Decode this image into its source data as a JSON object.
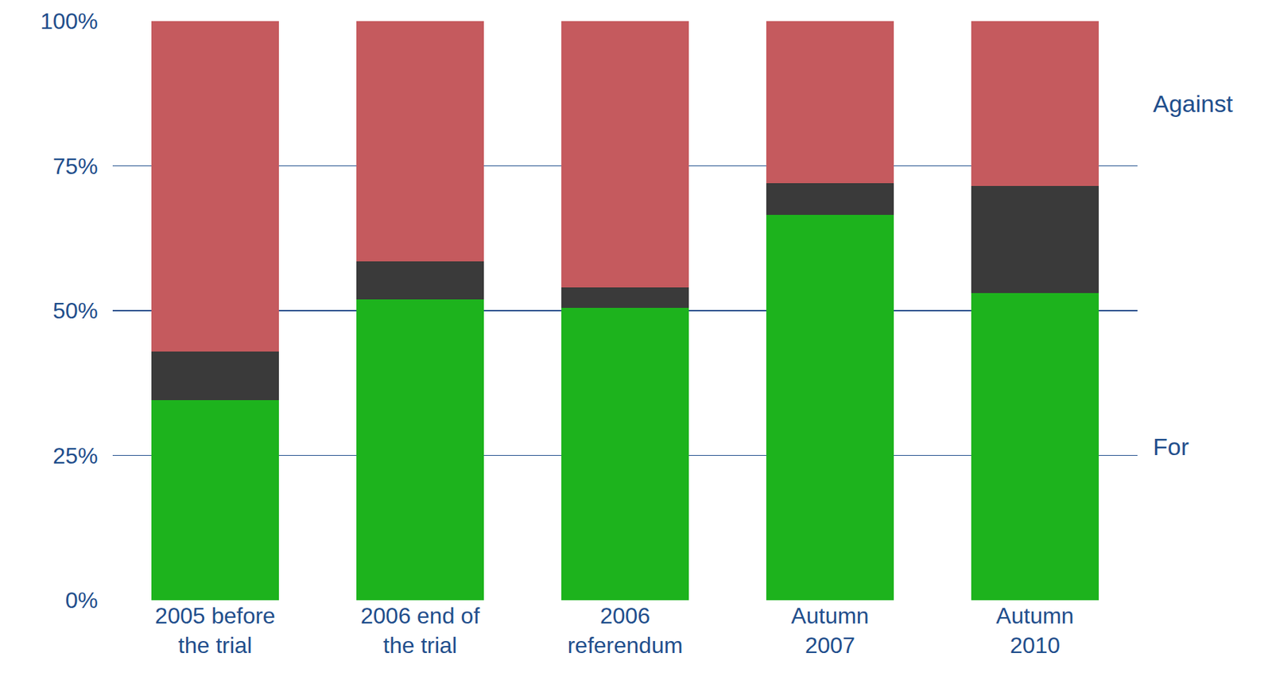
{
  "chart_data": {
    "type": "bar",
    "stacked": true,
    "categories": [
      "2005 before the trial",
      "2006 end of the trial",
      "2006 referendum",
      "Autumn 2007",
      "Autumn 2010"
    ],
    "series": [
      {
        "name": "For",
        "color": "#1db31d",
        "values": [
          34.5,
          52,
          50.5,
          66.5,
          53
        ]
      },
      {
        "color": "#3a3a3a",
        "values": [
          8.5,
          6.5,
          3.5,
          5.5,
          18.5
        ]
      },
      {
        "name": "Against",
        "color": "#c55a5e",
        "values": [
          57,
          41.5,
          46,
          28,
          28.5
        ]
      }
    ],
    "ylim": [
      0,
      100
    ],
    "yticks": [
      {
        "value": 0,
        "label": "0%"
      },
      {
        "value": 25,
        "label": "25%"
      },
      {
        "value": 50,
        "label": "50%"
      },
      {
        "value": 75,
        "label": "75%"
      },
      {
        "value": 100,
        "label": "100%"
      }
    ],
    "grid": true,
    "legend": "right"
  }
}
